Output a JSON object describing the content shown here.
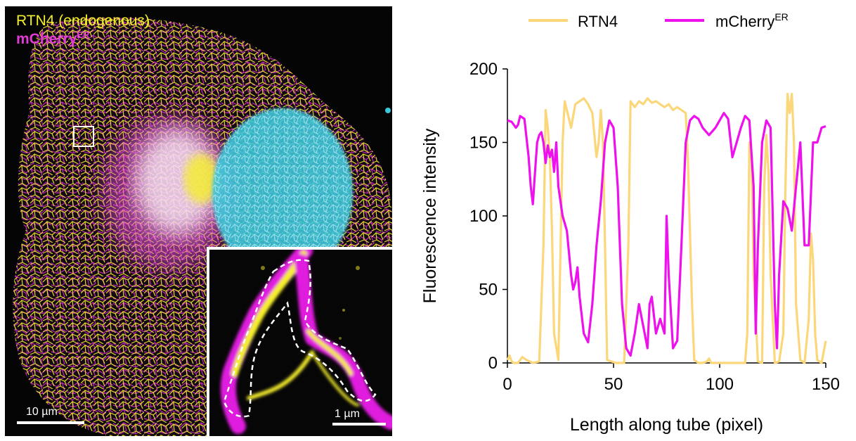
{
  "panel_image": {
    "labels": {
      "rtn4": "RTN4 (endogenous)",
      "mcherry_base": "mCherry",
      "mcherry_sup": "ER"
    },
    "scale_bar_main": "10 µm",
    "scale_bar_inset": "1 µm",
    "colors": {
      "rtn4": "#f5ef2a",
      "mcherry": "#e23ad6",
      "nucleus": "#3cc6d9",
      "background": "#050505"
    }
  },
  "chart_data": {
    "type": "line",
    "xlabel": "Length along tube (pixel)",
    "ylabel": "Fluorescence intensity",
    "xlim": [
      0,
      150
    ],
    "ylim": [
      0,
      200
    ],
    "xticks": [
      "0",
      "50",
      "100",
      "150"
    ],
    "yticks": [
      "0",
      "50",
      "100",
      "150",
      "200"
    ],
    "grid": false,
    "legend_position": "top",
    "series": [
      {
        "name": "RTN4",
        "legend_sup": "",
        "color": "#fbd77a",
        "x": [
          0,
          1,
          2,
          3,
          5,
          7,
          9,
          12,
          15,
          17,
          18,
          19,
          20,
          21,
          22,
          24,
          26,
          27,
          28,
          30,
          32,
          34,
          36,
          38,
          40,
          42,
          43,
          44,
          45,
          46,
          47,
          49,
          51,
          53,
          55,
          57,
          58,
          59,
          60,
          62,
          64,
          66,
          68,
          70,
          72,
          74,
          76,
          78,
          80,
          82,
          84,
          85,
          86,
          87,
          88,
          90,
          92,
          94,
          95,
          96,
          98,
          100,
          102,
          104,
          106,
          108,
          110,
          112,
          113,
          114,
          115,
          116,
          118,
          120,
          121,
          122,
          123,
          124,
          126,
          128,
          130,
          131,
          132,
          133,
          134,
          135,
          136,
          138,
          140,
          142,
          143,
          144,
          145,
          146,
          148,
          150
        ],
        "y": [
          2,
          5,
          1,
          0,
          0,
          4,
          2,
          0,
          1,
          80,
          172,
          160,
          140,
          90,
          20,
          2,
          150,
          178,
          172,
          160,
          176,
          178,
          180,
          176,
          170,
          140,
          150,
          172,
          150,
          80,
          2,
          1,
          0,
          0,
          0,
          80,
          178,
          176,
          174,
          178,
          176,
          180,
          177,
          178,
          176,
          174,
          176,
          172,
          174,
          172,
          170,
          140,
          90,
          40,
          2,
          0,
          0,
          1,
          3,
          0,
          0,
          0,
          0,
          0,
          0,
          0,
          0,
          0,
          20,
          150,
          140,
          60,
          1,
          0,
          120,
          155,
          130,
          60,
          0,
          1,
          20,
          120,
          183,
          170,
          183,
          150,
          40,
          2,
          0,
          30,
          88,
          70,
          20,
          2,
          0,
          15
        ]
      },
      {
        "name": "mCherry",
        "legend_sup": "ER",
        "color": "#ee11ee",
        "x": [
          0,
          2,
          4,
          5,
          6,
          8,
          10,
          11,
          12,
          13,
          14,
          15,
          16,
          17,
          18,
          19,
          20,
          21,
          22,
          23,
          24,
          26,
          28,
          30,
          31,
          32,
          33,
          34,
          36,
          38,
          40,
          42,
          44,
          46,
          48,
          50,
          52,
          54,
          56,
          58,
          60,
          62,
          64,
          66,
          67,
          68,
          70,
          72,
          74,
          75,
          76,
          78,
          80,
          82,
          84,
          86,
          88,
          90,
          92,
          95,
          98,
          100,
          102,
          104,
          106,
          108,
          110,
          112,
          114,
          116,
          117,
          118,
          120,
          122,
          124,
          126,
          127,
          128,
          130,
          132,
          134,
          136,
          138,
          140,
          142,
          144,
          145,
          146,
          148,
          150
        ],
        "y": [
          165,
          164,
          160,
          162,
          168,
          166,
          140,
          120,
          108,
          130,
          150,
          155,
          157,
          150,
          136,
          148,
          140,
          145,
          130,
          150,
          120,
          100,
          90,
          60,
          50,
          55,
          65,
          45,
          20,
          14,
          40,
          80,
          110,
          150,
          165,
          160,
          120,
          40,
          10,
          5,
          20,
          40,
          25,
          10,
          40,
          45,
          20,
          30,
          20,
          100,
          60,
          10,
          15,
          80,
          150,
          165,
          168,
          166,
          160,
          155,
          160,
          165,
          170,
          166,
          140,
          150,
          160,
          168,
          165,
          120,
          20,
          80,
          150,
          165,
          160,
          40,
          10,
          60,
          110,
          105,
          90,
          120,
          150,
          80,
          80,
          150,
          150,
          150,
          160,
          161
        ]
      }
    ]
  }
}
